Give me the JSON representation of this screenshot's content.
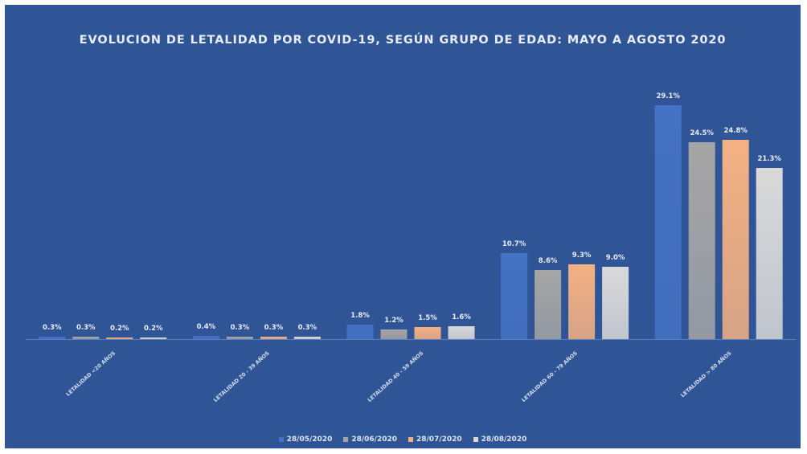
{
  "chart_data": {
    "type": "bar",
    "title": "EVOLUCION DE LETALIDAD POR COVID-19, SEGÚN GRUPO DE EDAD: MAYO A AGOSTO 2020",
    "categories": [
      "LETALIDAD <20 AÑOS",
      "LETALIDAD 20 - 39 AÑOS",
      "LETALIDAD 40 - 59 AÑOS",
      "LETALIDAD 60 - 79 AÑOS",
      "LETALIDAD > 80 AÑOS"
    ],
    "series": [
      {
        "name": "28/05/2020",
        "color": "#4472c4",
        "values": [
          0.3,
          0.4,
          1.8,
          10.7,
          29.1
        ],
        "labels": [
          "0.3%",
          "0.4%",
          "1.8%",
          "10.7%",
          "29.1%"
        ]
      },
      {
        "name": "28/06/2020",
        "color": "#a5a5a5",
        "values": [
          0.3,
          0.3,
          1.2,
          8.6,
          24.5
        ],
        "labels": [
          "0.3%",
          "0.3%",
          "1.2%",
          "8.6%",
          "24.5%"
        ]
      },
      {
        "name": "28/07/2020",
        "color": "#f4b183",
        "values": [
          0.2,
          0.3,
          1.5,
          9.3,
          24.8
        ],
        "labels": [
          "0.2%",
          "0.3%",
          "1.5%",
          "9.3%",
          "24.8%"
        ]
      },
      {
        "name": "28/08/2020",
        "color": "#d9d9d9",
        "values": [
          0.2,
          0.3,
          1.6,
          9.0,
          21.3
        ],
        "labels": [
          "0.2%",
          "0.3%",
          "1.6%",
          "9.0%",
          "21.3%"
        ]
      }
    ],
    "ylim": [
      0,
      30
    ],
    "grid": false,
    "legend_position": "bottom"
  },
  "ui": {
    "background": "#2f5597",
    "text_color": "#e8ecf5"
  }
}
